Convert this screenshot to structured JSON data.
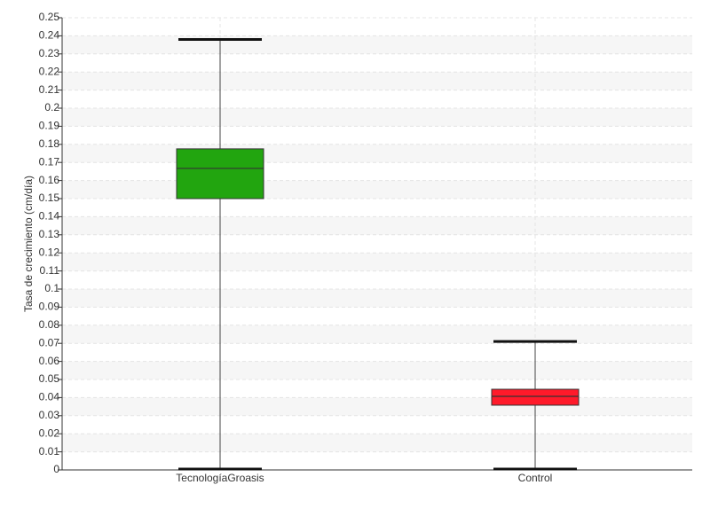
{
  "chart_data": {
    "type": "box",
    "y_label": "Tasa de crecimiento (cm/día)",
    "categories": [
      "TecnologíaGroasis",
      "Control"
    ],
    "min": [
      0,
      0
    ],
    "q1": [
      0.15,
      0.0358
    ],
    "median": [
      0.1667,
      0.0407
    ],
    "q3": [
      0.1775,
      0.0446
    ],
    "max": [
      0.238,
      0.071
    ],
    "colors": [
      "#22a50f",
      "#ff1a2a"
    ],
    "ylim": [
      0,
      0.25
    ],
    "yticks": [
      0,
      0.01,
      0.02,
      0.03,
      0.04,
      0.05,
      0.06,
      0.07,
      0.08,
      0.09,
      0.1,
      0.11,
      0.12,
      0.13,
      0.14,
      0.15,
      0.16,
      0.17,
      0.18,
      0.19,
      0.2,
      0.21,
      0.22,
      0.23,
      0.24,
      0.25
    ],
    "grid": true
  }
}
